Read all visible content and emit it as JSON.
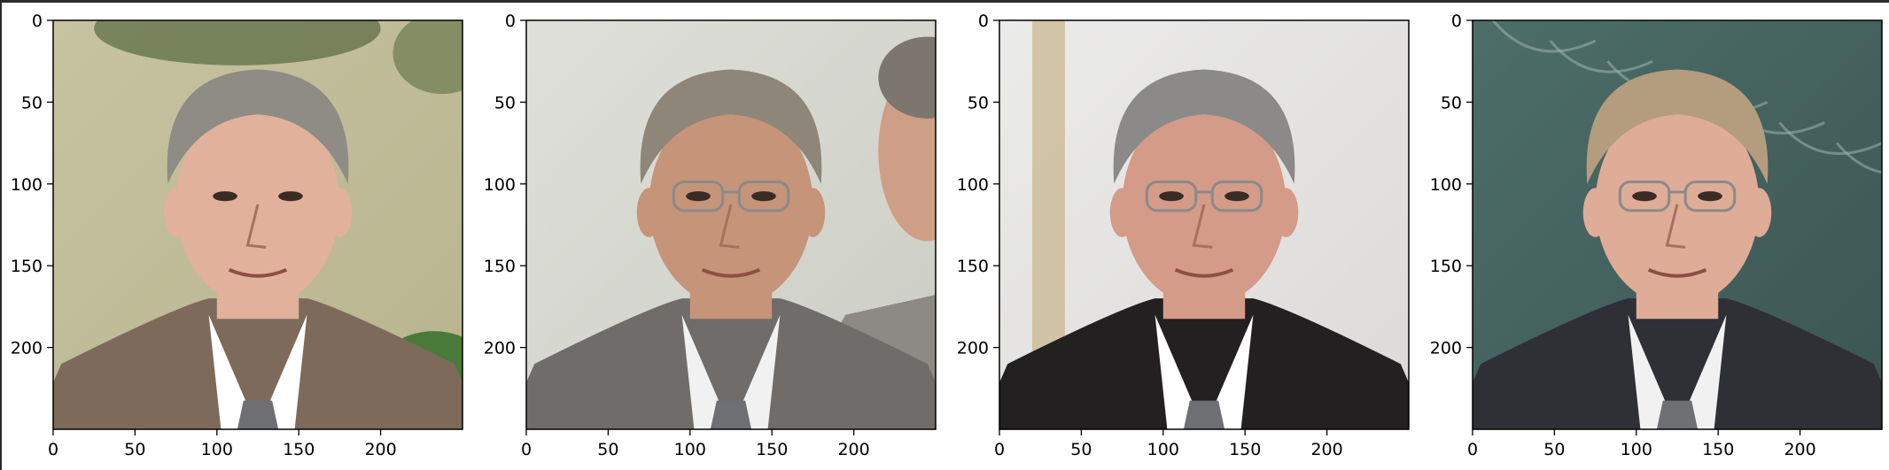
{
  "figure": {
    "background": "#ffffff",
    "axis_color": "#000000"
  },
  "chart_data": [
    {
      "type": "image",
      "title": "",
      "xlabel": "",
      "ylabel": "",
      "xlim": [
        0,
        250
      ],
      "ylim": [
        250,
        0
      ],
      "xticks": [
        0,
        50,
        100,
        150,
        200
      ],
      "yticks": [
        0,
        50,
        100,
        150,
        200
      ],
      "image": {
        "background": [
          "#c7c2a0",
          "#b8b48f"
        ],
        "suit": "#7d6a5a",
        "shirt": "#ffffff",
        "skin": "#e2b19b",
        "hair": "#8f8b85",
        "glasses": false,
        "second_person": false
      }
    },
    {
      "type": "image",
      "title": "",
      "xlabel": "",
      "ylabel": "",
      "xlim": [
        0,
        250
      ],
      "ylim": [
        250,
        0
      ],
      "xticks": [
        0,
        50,
        100,
        150,
        200
      ],
      "yticks": [
        0,
        50,
        100,
        150,
        200
      ],
      "image": {
        "background": [
          "#dfe0d9",
          "#cbcdc4"
        ],
        "suit": "#6f6c69",
        "shirt": "#f1f1f1",
        "skin": "#c69479",
        "hair": "#8e8679",
        "glasses": true,
        "second_person": true
      }
    },
    {
      "type": "image",
      "title": "",
      "xlabel": "",
      "ylabel": "",
      "xlim": [
        0,
        250
      ],
      "ylim": [
        250,
        0
      ],
      "xticks": [
        0,
        50,
        100,
        150,
        200
      ],
      "yticks": [
        0,
        50,
        100,
        150,
        200
      ],
      "image": {
        "background": [
          "#ebebea",
          "#dcdad7"
        ],
        "suit": "#222020",
        "shirt": "#ffffff",
        "skin": "#d49b88",
        "hair": "#8c8a88",
        "glasses": true,
        "second_person": false
      }
    },
    {
      "type": "image",
      "title": "",
      "xlabel": "",
      "ylabel": "",
      "xlim": [
        0,
        250
      ],
      "ylim": [
        250,
        0
      ],
      "xticks": [
        0,
        50,
        100,
        150,
        200
      ],
      "yticks": [
        0,
        50,
        100,
        150,
        200
      ],
      "image": {
        "background": [
          "#4d6e69",
          "#3b5552"
        ],
        "suit": "#2e3036",
        "shirt": "#f1f1f1",
        "skin": "#deac97",
        "hair": "#b49c7e",
        "glasses": true,
        "second_person": false
      }
    }
  ]
}
